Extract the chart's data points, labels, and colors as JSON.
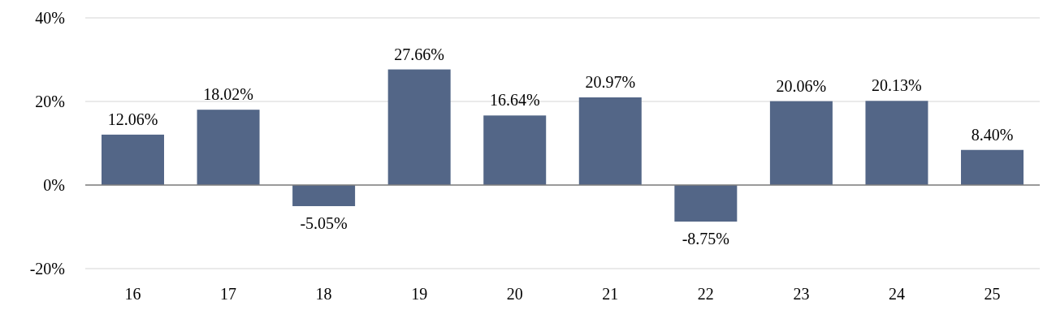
{
  "chart_data": {
    "type": "bar",
    "categories": [
      "16",
      "17",
      "18",
      "19",
      "20",
      "21",
      "22",
      "23",
      "24",
      "25"
    ],
    "values": [
      12.06,
      18.02,
      -5.05,
      27.66,
      16.64,
      20.97,
      -8.75,
      20.06,
      20.13,
      8.4
    ],
    "value_labels": [
      "12.06%",
      "18.02%",
      "-5.05%",
      "27.66%",
      "16.64%",
      "20.97%",
      "-8.75%",
      "20.06%",
      "20.13%",
      "8.40%"
    ],
    "color": "#536687",
    "ylim": [
      -20,
      40
    ],
    "yticks": [
      {
        "value": -20,
        "label": "-20%"
      },
      {
        "value": 0,
        "label": "0%"
      },
      {
        "value": 20,
        "label": "20%"
      },
      {
        "value": 40,
        "label": "40%"
      }
    ],
    "grid": "y"
  }
}
